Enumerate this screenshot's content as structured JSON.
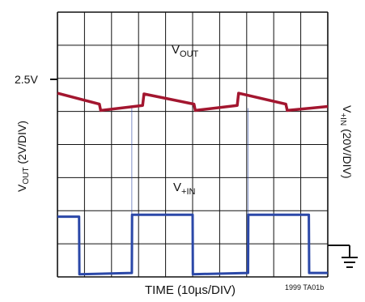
{
  "chart_data": {
    "type": "line",
    "title": "",
    "xlabel": "TIME (10µs/DIV)",
    "ylabel_left": {
      "main": "V",
      "sub": "OUT",
      "tail": " (2V/DIV)"
    },
    "ylabel_right": {
      "main": "V",
      "sub": "+IN",
      "tail": " (20V/DIV)"
    },
    "reference_label": "2.5V",
    "figure_id": "1999 TA01b",
    "grid": true,
    "divisions": {
      "x": 10,
      "y": 8
    },
    "xlim": [
      0,
      100
    ],
    "x_unit": "µs",
    "ground_marker": "ground-symbol",
    "series": [
      {
        "name": "VOUT",
        "label": {
          "main": "V",
          "sub": "OUT"
        },
        "color": "#a3162f",
        "x": [
          0,
          15.5,
          16,
          31.5,
          32,
          50.5,
          51,
          66.5,
          67,
          84.5,
          85,
          100
        ],
        "y_div": [
          5.55,
          5.22,
          5.03,
          5.18,
          5.53,
          5.22,
          5.03,
          5.18,
          5.55,
          5.22,
          5.03,
          5.15
        ]
      },
      {
        "name": "V+IN",
        "label": {
          "main": "V",
          "sub": "+IN"
        },
        "color": "#2b48a8",
        "x": [
          0,
          8,
          8.1,
          27.5,
          27.6,
          50,
          50.1,
          70.5,
          70.6,
          93,
          93.1,
          100
        ],
        "y_div": [
          1.82,
          1.82,
          0.08,
          0.12,
          1.88,
          1.88,
          0.08,
          0.12,
          1.88,
          1.88,
          0.12,
          0.12
        ],
        "spikes_x": [
          27.5,
          70.5
        ],
        "spike_peak_div": 5.1
      }
    ]
  }
}
